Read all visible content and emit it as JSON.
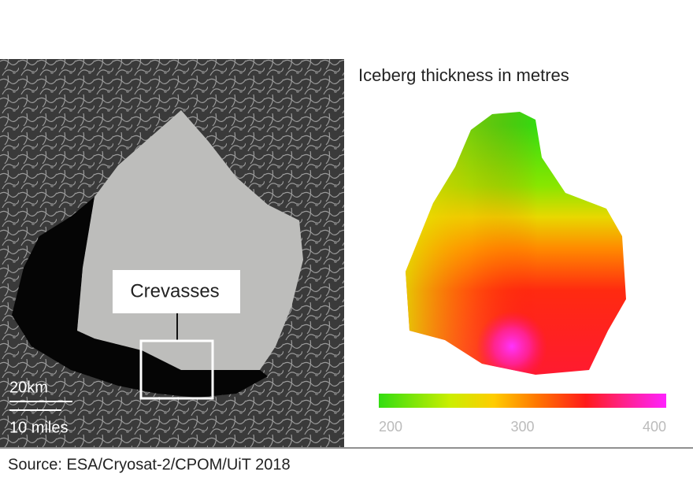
{
  "satellite_image": {
    "label": "Crevasses",
    "scale_km": "20km",
    "scale_miles": "10 miles"
  },
  "thickness_map": {
    "title": "Iceberg thickness in metres",
    "scale_range": [
      200,
      400
    ],
    "scale_ticks": [
      200,
      300,
      400
    ]
  },
  "source": "Source: ESA/Cryosat-2/CPOM/UiT 2018"
}
